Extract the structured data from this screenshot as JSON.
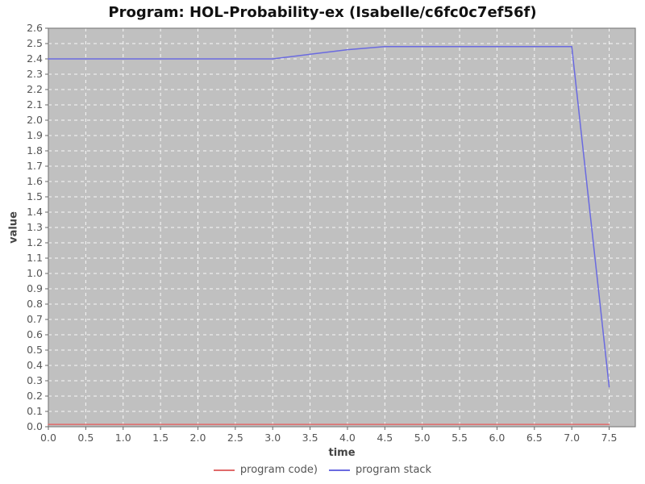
{
  "chart_data": {
    "type": "line",
    "title": "Program: HOL-Probability-ex (Isabelle/c6fc0c7ef56f)",
    "xlabel": "time",
    "ylabel": "value",
    "xlim": [
      0,
      7.85
    ],
    "ylim": [
      0,
      2.6
    ],
    "x_ticks": [
      0.0,
      0.5,
      1.0,
      1.5,
      2.0,
      2.5,
      3.0,
      3.5,
      4.0,
      4.5,
      5.0,
      5.5,
      6.0,
      6.5,
      7.0,
      7.5
    ],
    "y_ticks": [
      0.0,
      0.1,
      0.2,
      0.3,
      0.4,
      0.5,
      0.6,
      0.7,
      0.8,
      0.9,
      1.0,
      1.1,
      1.2,
      1.3,
      1.4,
      1.5,
      1.6,
      1.7,
      1.8,
      1.9,
      2.0,
      2.1,
      2.2,
      2.3,
      2.4,
      2.5,
      2.6
    ],
    "grid": true,
    "legend_position": "bottom",
    "colors": {
      "plot_bg": "#c0c0c0",
      "grid": "#ffffff",
      "plot_border": "#808080",
      "tick_mark": "#666666",
      "tick_label": "#555555",
      "axis_label": "#444444",
      "title": "#111111",
      "legend_text": "#555555"
    },
    "series": [
      {
        "name": "program code)",
        "color": "#e06a6a",
        "points": [
          [
            0.0,
            0.015
          ],
          [
            3.0,
            0.015
          ],
          [
            4.5,
            0.015
          ],
          [
            7.0,
            0.015
          ],
          [
            7.5,
            0.015
          ]
        ]
      },
      {
        "name": "program stack",
        "color": "#6a6ae0",
        "points": [
          [
            0.0,
            2.4
          ],
          [
            3.0,
            2.4
          ],
          [
            3.5,
            2.43
          ],
          [
            4.0,
            2.46
          ],
          [
            4.5,
            2.48
          ],
          [
            7.0,
            2.48
          ],
          [
            7.5,
            0.26
          ]
        ]
      }
    ]
  }
}
